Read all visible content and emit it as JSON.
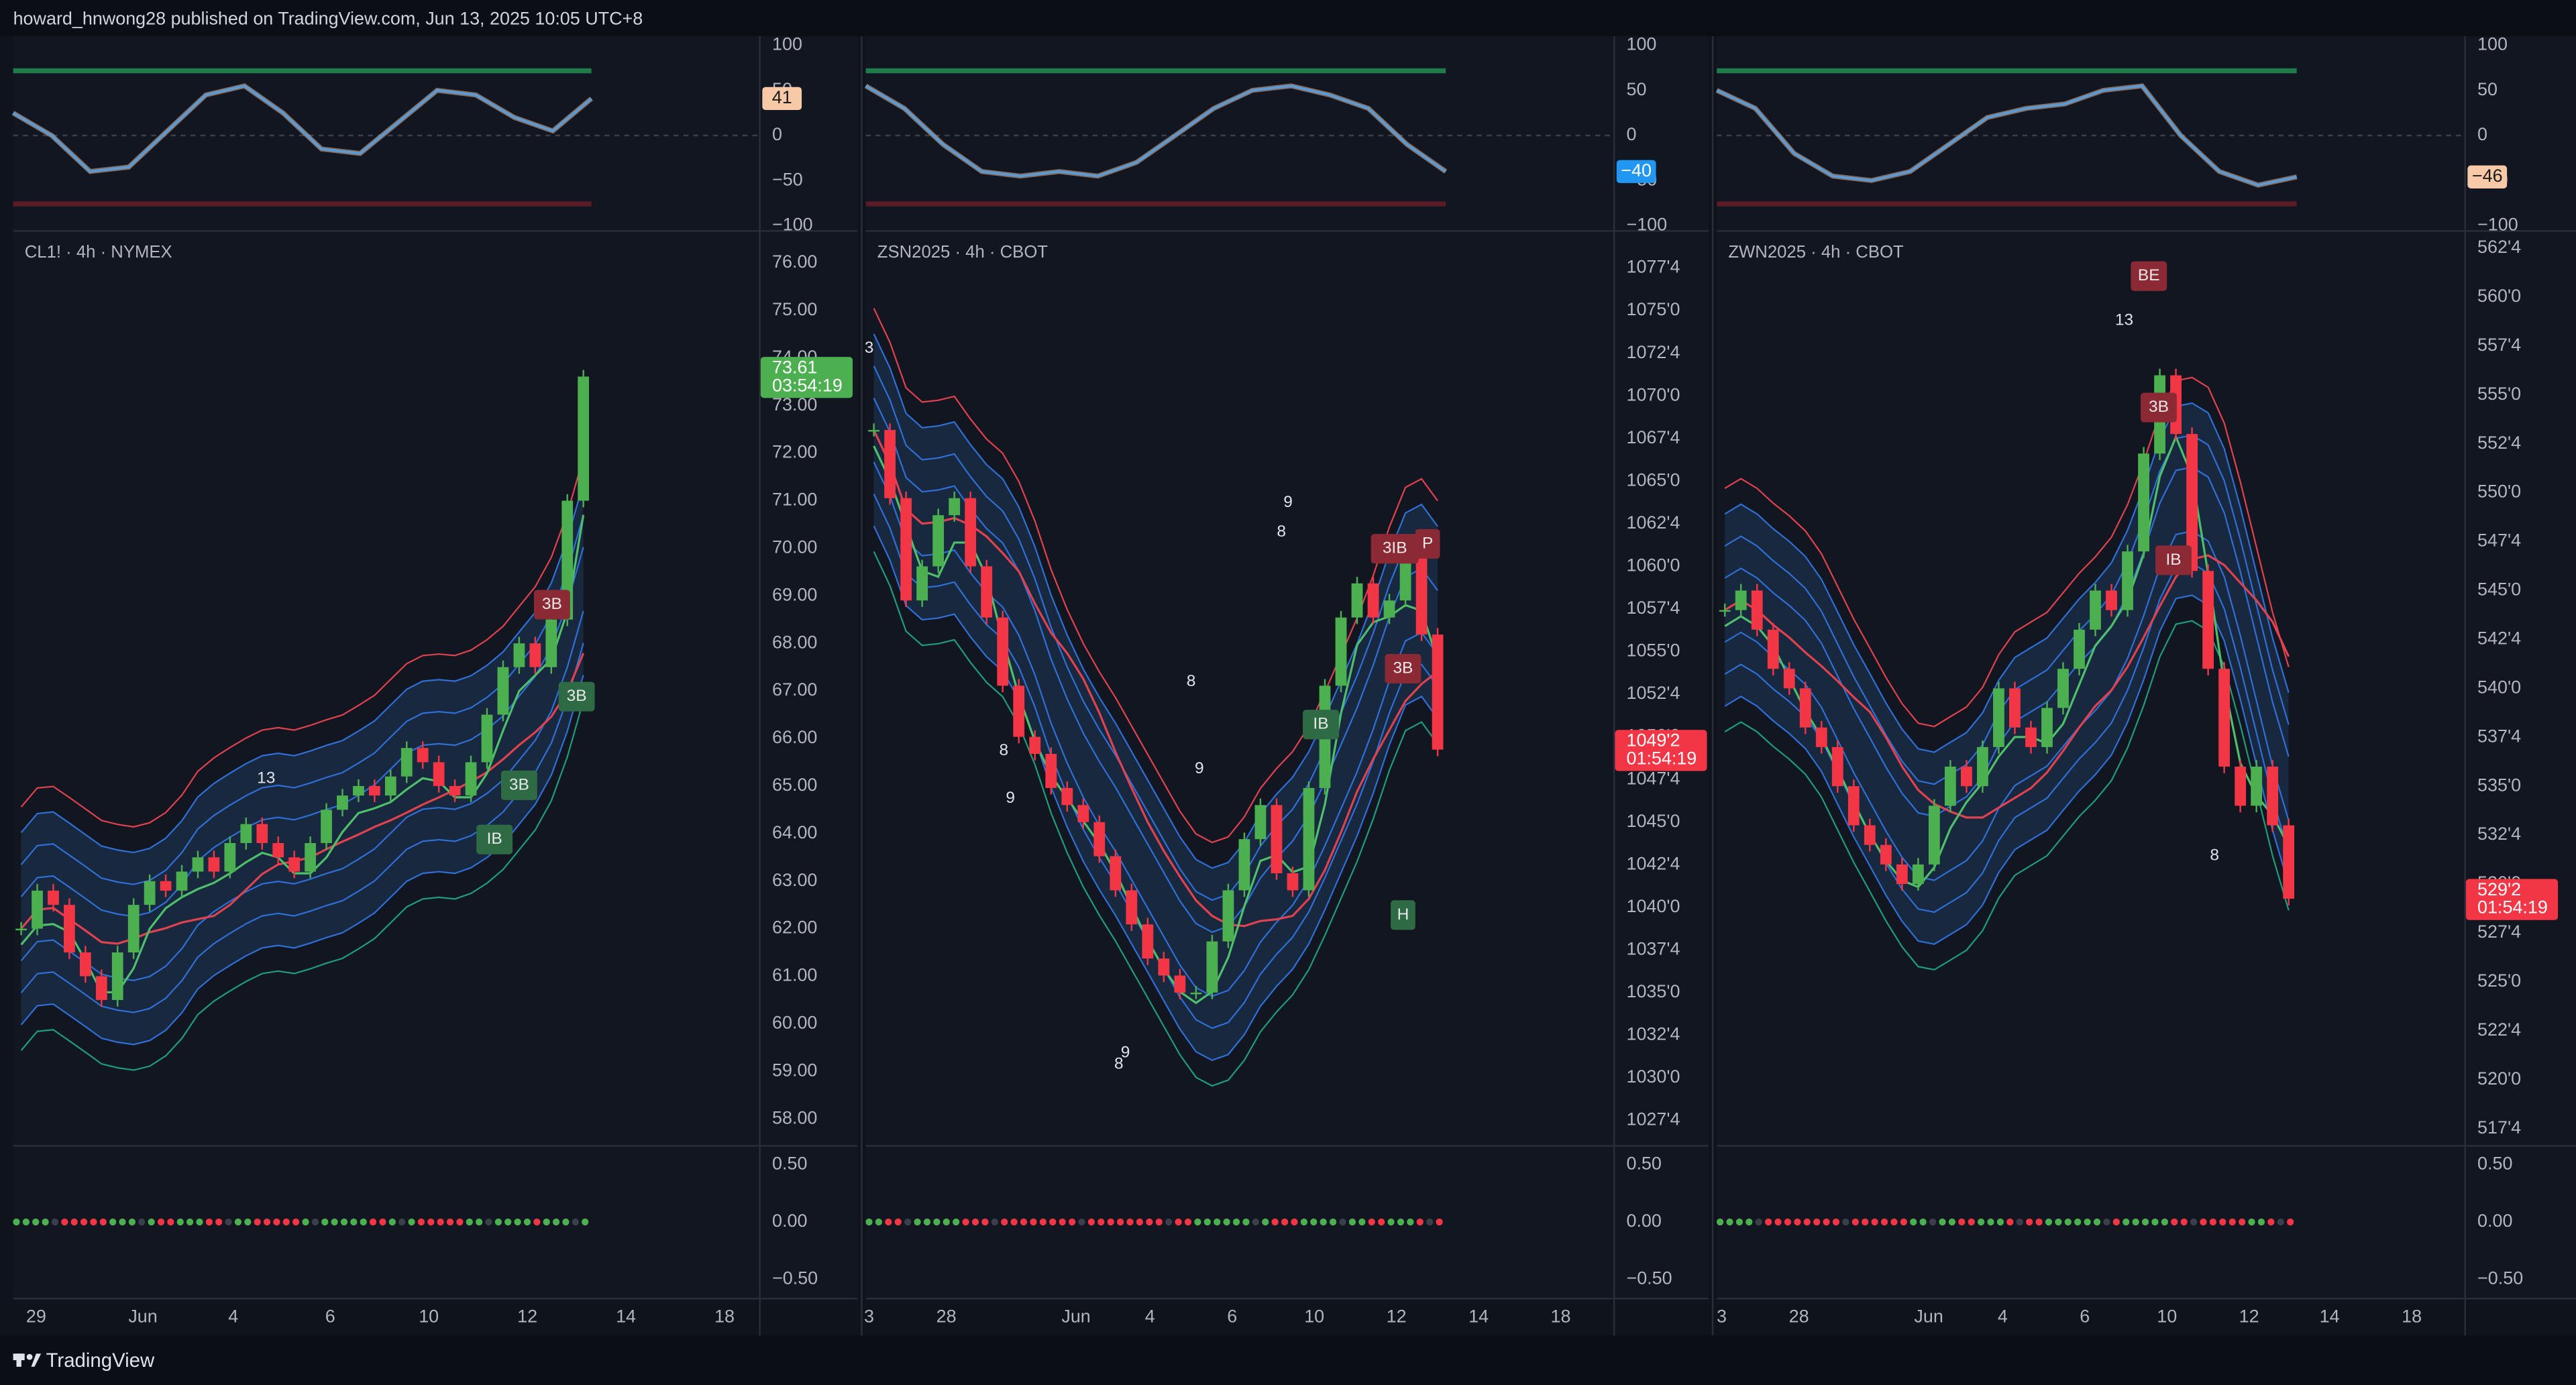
{
  "header": {
    "text": "howard_hnwong28 published on TradingView.com, Jun 13, 2025 10:05 UTC+8"
  },
  "footer": {
    "brand": "TradingView"
  },
  "panels": [
    {
      "symbol": "CL1! · 4h · NYMEX",
      "oscillator": {
        "ylim": [
          -105,
          110
        ],
        "yticks": [
          100,
          50,
          0,
          {
            "value": -50,
            "label": "−50"
          },
          {
            "value": -100,
            "label": "−100"
          }
        ],
        "values": [
          25,
          0,
          -40,
          -35,
          5,
          45,
          55,
          25,
          -15,
          -20,
          15,
          50,
          45,
          20,
          5,
          41
        ],
        "last": 41,
        "last_label": "41",
        "tag_color": "#f7c9a6"
      },
      "price": {
        "ylim": [
          57.45,
          76.69
        ],
        "yticks": [
          {
            "value": 76,
            "label": "76.00"
          },
          {
            "value": 75,
            "label": "75.00"
          },
          {
            "value": 74,
            "label": "74.00"
          },
          {
            "value": 73,
            "label": "73.00"
          },
          {
            "value": 72,
            "label": "72.00"
          },
          {
            "value": 71,
            "label": "71.00"
          },
          {
            "value": 70,
            "label": "70.00"
          },
          {
            "value": 69,
            "label": "69.00"
          },
          {
            "value": 68,
            "label": "68.00"
          },
          {
            "value": 67,
            "label": "67.00"
          },
          {
            "value": 66,
            "label": "66.00"
          },
          {
            "value": 65,
            "label": "65.00"
          },
          {
            "value": 64,
            "label": "64.00"
          },
          {
            "value": 63,
            "label": "63.00"
          },
          {
            "value": 62,
            "label": "62.00"
          },
          {
            "value": 61,
            "label": "61.00"
          },
          {
            "value": 60,
            "label": "60.00"
          },
          {
            "value": 59,
            "label": "59.00"
          },
          {
            "value": 58,
            "label": "58.00"
          }
        ],
        "closes": [
          62,
          62.8,
          62.5,
          61.5,
          61,
          60.5,
          61.5,
          62.5,
          63,
          62.8,
          63.2,
          63.5,
          63.2,
          63.8,
          64.2,
          63.8,
          63.5,
          63.2,
          63.8,
          64.5,
          64.8,
          65,
          64.8,
          65.2,
          65.8,
          65.5,
          65,
          64.8,
          65.5,
          66.5,
          67.5,
          68,
          67.5,
          68.5,
          71,
          73.61
        ],
        "last": 73.61,
        "last_label": "73.61",
        "countdown": "03:54:19",
        "tag_color": "#4caf50"
      },
      "lower": {
        "ylim": [
          -0.66,
          0.67
        ],
        "yticks": [
          {
            "value": 0.5,
            "label": "0.50"
          },
          {
            "value": 0,
            "label": "0.00"
          },
          {
            "value": -0.5,
            "label": "−0.50"
          }
        ]
      },
      "time_labels": [
        "29",
        "Jun",
        "4",
        "6",
        "10",
        "12",
        "14",
        "18"
      ],
      "annotations": [
        "13",
        "3B",
        "3B",
        "3B",
        "IB"
      ]
    },
    {
      "symbol": "ZSN2025 · 4h · CBOT",
      "oscillator": {
        "ylim": [
          -105,
          110
        ],
        "yticks": [
          100,
          50,
          0,
          {
            "value": -50,
            "label": "−50"
          },
          {
            "value": -100,
            "label": "−100"
          }
        ],
        "values": [
          55,
          30,
          -10,
          -40,
          -45,
          -40,
          -45,
          -30,
          0,
          30,
          50,
          55,
          45,
          30,
          -10,
          -40
        ],
        "last": -40,
        "last_label": "−40",
        "tag_color": "#2196f3"
      },
      "price": {
        "ylim": [
          1026.06,
          1079.72
        ],
        "yticks": [
          {
            "value": 1077.5,
            "label": "1077'4"
          },
          {
            "value": 1075,
            "label": "1075'0"
          },
          {
            "value": 1072.5,
            "label": "1072'4"
          },
          {
            "value": 1070,
            "label": "1070'0"
          },
          {
            "value": 1067.5,
            "label": "1067'4"
          },
          {
            "value": 1065,
            "label": "1065'0"
          },
          {
            "value": 1062.5,
            "label": "1062'4"
          },
          {
            "value": 1060,
            "label": "1060'0"
          },
          {
            "value": 1057.5,
            "label": "1057'4"
          },
          {
            "value": 1055,
            "label": "1055'0"
          },
          {
            "value": 1052.5,
            "label": "1052'4"
          },
          {
            "value": 1050,
            "label": "1050'0"
          },
          {
            "value": 1047.5,
            "label": "1047'4"
          },
          {
            "value": 1045,
            "label": "1045'0"
          },
          {
            "value": 1042.5,
            "label": "1042'4"
          },
          {
            "value": 1040,
            "label": "1040'0"
          },
          {
            "value": 1037.5,
            "label": "1037'4"
          },
          {
            "value": 1035,
            "label": "1035'0"
          },
          {
            "value": 1032.5,
            "label": "1032'4"
          },
          {
            "value": 1030,
            "label": "1030'0"
          },
          {
            "value": 1027.5,
            "label": "1027'4"
          }
        ],
        "closes": [
          1068,
          1064,
          1058,
          1060,
          1063,
          1064,
          1060,
          1057,
          1053,
          1050,
          1049,
          1047,
          1046,
          1045,
          1043,
          1041,
          1039,
          1037,
          1036,
          1035,
          1035,
          1038,
          1041,
          1044,
          1046,
          1042,
          1041,
          1047,
          1053,
          1057,
          1059,
          1057,
          1058,
          1061,
          1056,
          1049.25
        ],
        "last": 1049.25,
        "last_label": "1049'2",
        "countdown": "01:54:19",
        "tag_color": "#f23645"
      },
      "lower": {
        "ylim": [
          -0.66,
          0.67
        ],
        "yticks": [
          {
            "value": 0.5,
            "label": "0.50"
          },
          {
            "value": 0,
            "label": "0.00"
          },
          {
            "value": -0.5,
            "label": "−0.50"
          }
        ]
      },
      "time_labels": [
        "3",
        "28",
        "Jun",
        "4",
        "6",
        "10",
        "12",
        "14",
        "18"
      ],
      "annotations": [
        "3",
        "9",
        "8",
        "8",
        "9",
        "8",
        "9",
        "8",
        "9",
        "3IB",
        "P",
        "3B",
        "IB",
        "H"
      ]
    },
    {
      "symbol": "ZWN2025 · 4h · CBOT",
      "oscillator": {
        "ylim": [
          -105,
          110
        ],
        "yticks": [
          100,
          50,
          0,
          {
            "value": -50,
            "label": "−50"
          },
          {
            "value": -100,
            "label": "−100"
          }
        ],
        "values": [
          50,
          30,
          -20,
          -45,
          -50,
          -40,
          -10,
          20,
          30,
          35,
          50,
          55,
          0,
          -40,
          -55,
          -46
        ],
        "last": -46,
        "last_label": "−46",
        "tag_color": "#f7c9a6"
      },
      "price": {
        "ylim": [
          516.66,
          563.42
        ],
        "yticks": [
          {
            "value": 562.5,
            "label": "562'4"
          },
          {
            "value": 560,
            "label": "560'0"
          },
          {
            "value": 557.5,
            "label": "557'4"
          },
          {
            "value": 555,
            "label": "555'0"
          },
          {
            "value": 552.5,
            "label": "552'4"
          },
          {
            "value": 550,
            "label": "550'0"
          },
          {
            "value": 547.5,
            "label": "547'4"
          },
          {
            "value": 545,
            "label": "545'0"
          },
          {
            "value": 542.5,
            "label": "542'4"
          },
          {
            "value": 540,
            "label": "540'0"
          },
          {
            "value": 537.5,
            "label": "537'4"
          },
          {
            "value": 535,
            "label": "535'0"
          },
          {
            "value": 532.5,
            "label": "532'4"
          },
          {
            "value": 530,
            "label": "530'0"
          },
          {
            "value": 527.5,
            "label": "527'4"
          },
          {
            "value": 525,
            "label": "525'0"
          },
          {
            "value": 522.5,
            "label": "522'4"
          },
          {
            "value": 520,
            "label": "520'0"
          },
          {
            "value": 517.5,
            "label": "517'4"
          }
        ],
        "closes": [
          544,
          545,
          543,
          541,
          540,
          538,
          537,
          535,
          533,
          532,
          531,
          530,
          531,
          534,
          536,
          535,
          537,
          540,
          538,
          537,
          539,
          541,
          543,
          545,
          544,
          547,
          552,
          556,
          553,
          546,
          541,
          536,
          534,
          536,
          533,
          529.25
        ],
        "last": 529.25,
        "last_label": "529'2",
        "countdown": "01:54:19",
        "tag_color": "#f23645"
      },
      "lower": {
        "ylim": [
          -0.66,
          0.67
        ],
        "yticks": [
          {
            "value": 0.5,
            "label": "0.50"
          },
          {
            "value": 0,
            "label": "0.00"
          },
          {
            "value": -0.5,
            "label": "−0.50"
          }
        ]
      },
      "time_labels": [
        "3",
        "28",
        "Jun",
        "4",
        "6",
        "10",
        "12",
        "14",
        "18"
      ],
      "annotations": [
        "BE",
        "13",
        "3B",
        "IB",
        "8"
      ]
    }
  ]
}
